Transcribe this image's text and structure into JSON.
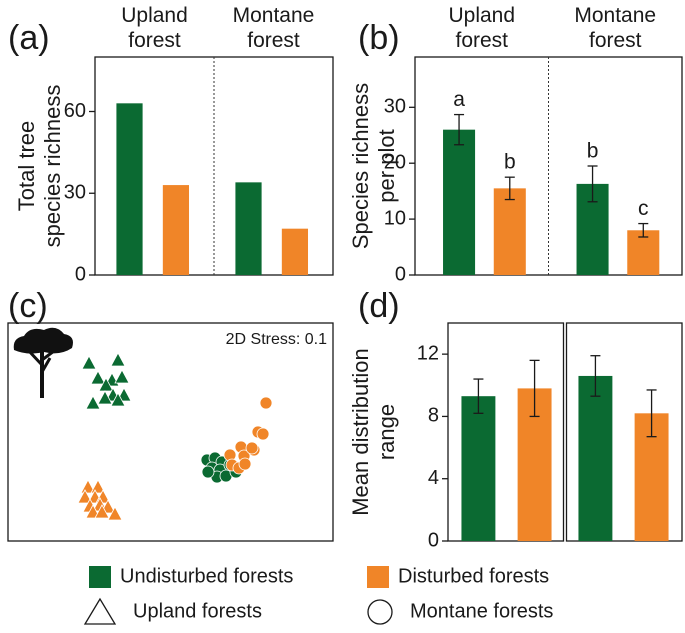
{
  "chart_data": [
    {
      "type": "bar",
      "panel_label": "(a)",
      "ylabel": [
        "Total tree",
        "species richness"
      ],
      "categories": [
        "Upland forest",
        "Montane forest"
      ],
      "series": [
        {
          "color": "#0b6a32",
          "values": [
            63,
            34
          ]
        },
        {
          "color": "#f08528",
          "values": [
            33,
            17
          ]
        }
      ],
      "ylim": [
        0,
        80
      ],
      "yticks": [
        0,
        30,
        60
      ],
      "group_divider": "dotted"
    },
    {
      "type": "bar",
      "panel_label": "(b)",
      "ylabel": [
        "Species richness",
        "per plot"
      ],
      "categories": [
        "Upland forest",
        "Montane forest"
      ],
      "series": [
        {
          "color": "#0b6a32",
          "values": [
            26,
            16.3
          ],
          "errors": [
            2.7,
            3.2
          ],
          "annotations": [
            "a",
            "b"
          ]
        },
        {
          "color": "#f08528",
          "values": [
            15.5,
            8
          ],
          "errors": [
            2,
            1.2
          ],
          "annotations": [
            "b",
            "c"
          ]
        }
      ],
      "ylim": [
        0,
        39
      ],
      "yticks": [
        0,
        10,
        20,
        30
      ],
      "group_divider": "dotted"
    },
    {
      "type": "scatter",
      "panel_label": "(c)",
      "annotation": "2D Stress: 0.1",
      "xlim": [
        0,
        325
      ],
      "ylim": [
        0,
        218
      ],
      "series": [
        {
          "color": "#0b6a32",
          "marker": "triangle",
          "x": [
            81,
            110,
            90,
            104,
            114,
            98,
            105,
            116,
            85,
            97,
            110
          ],
          "y": [
            178,
            181,
            163,
            161,
            164,
            156,
            146,
            146,
            138,
            143,
            141
          ]
        },
        {
          "color": "#f08528",
          "marker": "triangle",
          "x": [
            80,
            90,
            77,
            87,
            95,
            82,
            92,
            100,
            85,
            107,
            94
          ],
          "y": [
            54,
            54,
            44,
            44,
            44,
            35,
            36,
            34,
            29,
            27,
            29
          ]
        },
        {
          "color": "#0b6a32",
          "marker": "circle",
          "x": [
            199,
            207,
            214,
            204,
            212,
            222,
            209,
            218,
            228,
            200
          ],
          "y": [
            81,
            83,
            79,
            73,
            71,
            76,
            64,
            65,
            69,
            69
          ]
        },
        {
          "color": "#f08528",
          "marker": "circle",
          "x": [
            258,
            250,
            255,
            233,
            222,
            236,
            246,
            224,
            231,
            237,
            244
          ],
          "y": [
            138,
            109,
            107,
            94,
            86,
            85,
            91,
            76,
            73,
            77,
            93
          ]
        }
      ]
    },
    {
      "type": "bar",
      "panel_label": "(d)",
      "ylabel": [
        "Mean distribution",
        "range"
      ],
      "categories": [
        null,
        null
      ],
      "series": [
        {
          "color": "#0b6a32",
          "values": [
            9.3,
            10.6
          ],
          "errors": [
            1.1,
            1.3
          ]
        },
        {
          "color": "#f08528",
          "values": [
            9.8,
            8.2
          ],
          "errors": [
            1.8,
            1.5
          ]
        }
      ],
      "ylim": [
        0,
        14
      ],
      "yticks": [
        0,
        4,
        8,
        12
      ],
      "group_divider": "box"
    }
  ],
  "legend": {
    "colors": [
      {
        "label": "Undisturbed forests",
        "color": "#0b6a32"
      },
      {
        "label": "Disturbed forests",
        "color": "#f08528"
      }
    ],
    "shapes": [
      {
        "label": "Upland forests",
        "shape": "triangle"
      },
      {
        "label": "Montane forests",
        "shape": "circle"
      }
    ]
  }
}
